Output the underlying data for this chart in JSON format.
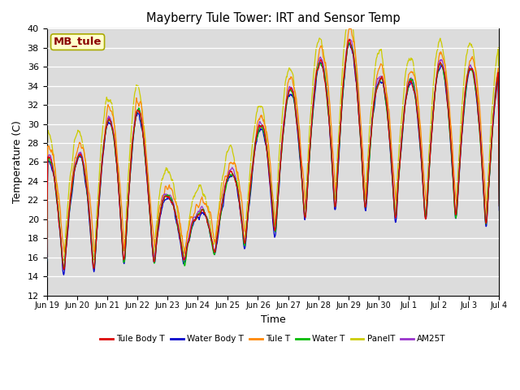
{
  "title": "Mayberry Tule Tower: IRT and Sensor Temp",
  "xlabel": "Time",
  "ylabel": "Temperature (C)",
  "ylim": [
    12,
    40
  ],
  "yticks": [
    12,
    14,
    16,
    18,
    20,
    22,
    24,
    26,
    28,
    30,
    32,
    34,
    36,
    38,
    40
  ],
  "bg_color": "#dcdcdc",
  "fig_color": "#ffffff",
  "watermark_text": "MB_tule",
  "watermark_fg": "#8B0000",
  "watermark_bg": "#ffffcc",
  "series_colors": {
    "Tule Body T": "#dd0000",
    "Water Body T": "#0000cc",
    "Tule T": "#ff8800",
    "Water T": "#00bb00",
    "PanelT": "#cccc00",
    "AM25T": "#9933cc"
  },
  "x_tick_labels": [
    "Jun 19",
    "Jun 20",
    "Jun 21",
    "Jun 22",
    "Jun 23",
    "Jun 24",
    "Jun 25",
    "Jun 26",
    "Jun 27",
    "Jun 28",
    "Jun 29",
    "Jun 30",
    "Jul 1",
    "Jul 2",
    "Jul 3",
    "Jul 4"
  ],
  "n_points": 960,
  "days": 16
}
